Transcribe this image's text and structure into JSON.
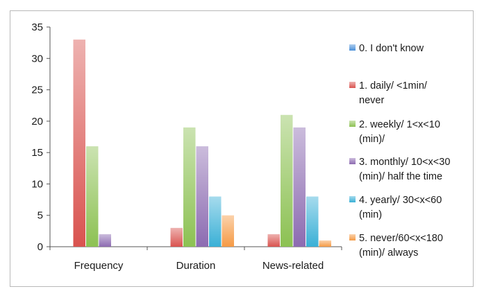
{
  "chart_data": {
    "type": "bar",
    "categories": [
      "Frequency",
      "Duration",
      "News-related"
    ],
    "series": [
      {
        "name": "0. I don't know",
        "legend_lines": [
          "0. I don't know"
        ],
        "color": "#4a90d9",
        "values": [
          0,
          0,
          0
        ]
      },
      {
        "name": "1. daily/ <1min/ never",
        "legend_lines": [
          "1. daily/ <1min/",
          "never"
        ],
        "color": "#d9534f",
        "values": [
          33,
          3,
          2
        ]
      },
      {
        "name": "2. weekly/ 1<x<10 (min)/",
        "legend_lines": [
          "2. weekly/ 1<x<10",
          "(min)/"
        ],
        "color": "#8cc152",
        "values": [
          16,
          19,
          21
        ]
      },
      {
        "name": "3. monthly/ 10<x<30 (min)/ half the time",
        "legend_lines": [
          "3. monthly/ 10<x<30",
          "(min)/ half the time"
        ],
        "color": "#8c6bb1",
        "values": [
          2,
          16,
          19
        ]
      },
      {
        "name": "4. yearly/ 30<x<60 (min)",
        "legend_lines": [
          "4. yearly/ 30<x<60",
          "(min)"
        ],
        "color": "#3ab0d6",
        "values": [
          0,
          8,
          8
        ]
      },
      {
        "name": "5. never/60<x<180 (min)/ always",
        "legend_lines": [
          "5. never/60<x<180",
          "(min)/ always"
        ],
        "color": "#f59a45",
        "values": [
          0,
          5,
          1
        ]
      }
    ],
    "y_ticks": [
      0,
      5,
      10,
      15,
      20,
      25,
      30,
      35
    ],
    "ylim": [
      0,
      35
    ],
    "grid": false,
    "legend_position": "right",
    "title": "",
    "xlabel": "",
    "ylabel": ""
  }
}
